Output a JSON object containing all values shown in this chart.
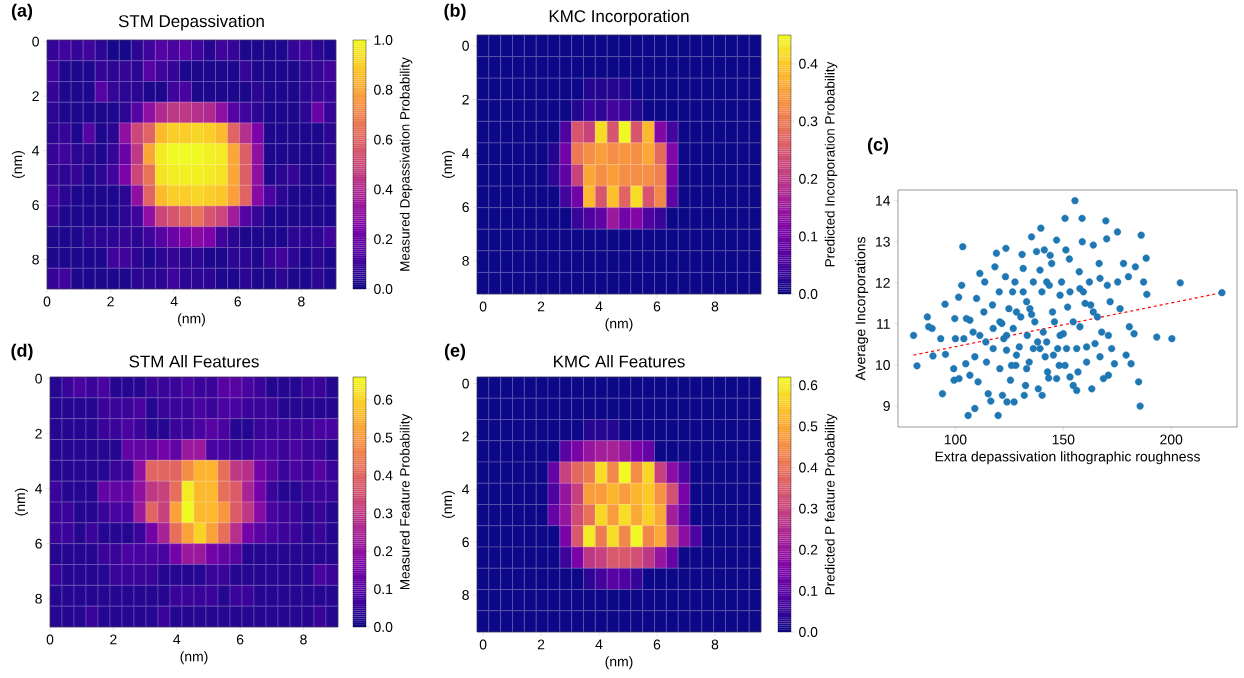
{
  "chart_data": [
    {
      "type": "heatmap",
      "title": "STM Depassivation",
      "xlabel": "(nm)",
      "ylabel": "(nm)",
      "clabel": "Measured Depassivation Probability",
      "annotations": [
        "(a)"
      ],
      "xlim": [
        0,
        9.09
      ],
      "ylim": [
        9.08,
        -0.06
      ],
      "xticks": [
        0,
        2,
        4,
        6,
        8
      ],
      "yticks": [
        0,
        2,
        4,
        6,
        8
      ],
      "clim": [
        0,
        1.0
      ],
      "cticks": [
        {
          "value": 0,
          "label": "0.0"
        },
        {
          "value": 0.2,
          "label": "0.2"
        },
        {
          "value": 0.4,
          "label": "0.4"
        },
        {
          "value": 0.6,
          "label": "0.6"
        },
        {
          "value": 0.8,
          "label": "0.8"
        },
        {
          "value": 1.0,
          "label": "1.0"
        }
      ],
      "cells": [
        [
          0.08,
          0.1,
          0.08,
          0.1,
          0.06,
          0.02,
          0.02,
          0.06,
          0.1,
          0.15,
          0.12,
          0.15,
          0.1,
          0.05,
          0.1,
          0.08,
          0.03,
          0.03,
          0.03,
          0.03,
          0.08,
          0.1,
          0.06,
          0.03
        ],
        [
          0.1,
          0.03,
          0.03,
          0.03,
          0.08,
          0.06,
          0.08,
          0.06,
          0.15,
          0.1,
          0.08,
          0.03,
          0.03,
          0.03,
          0.03,
          0.03,
          0.08,
          0.03,
          0.03,
          0.03,
          0.03,
          0.06,
          0.08,
          0.1
        ],
        [
          0.08,
          0.03,
          0.03,
          0.03,
          0.15,
          0.08,
          0.06,
          0.06,
          0.03,
          0.03,
          0.1,
          0.12,
          0.03,
          0.03,
          0.03,
          0.03,
          0.03,
          0.06,
          0.03,
          0.03,
          0.03,
          0.06,
          0.08,
          0.08
        ],
        [
          0.06,
          0.03,
          0.03,
          0.03,
          0.03,
          0.03,
          0.06,
          0.15,
          0.3,
          0.4,
          0.45,
          0.45,
          0.42,
          0.4,
          0.3,
          0.15,
          0.1,
          0.06,
          0.03,
          0.03,
          0.03,
          0.06,
          0.2,
          0.08
        ],
        [
          0.06,
          0.08,
          0.03,
          0.15,
          0.03,
          0.06,
          0.3,
          0.5,
          0.6,
          0.85,
          0.9,
          0.9,
          0.92,
          0.9,
          0.85,
          0.6,
          0.42,
          0.25,
          0.03,
          0.03,
          0.03,
          0.03,
          0.03,
          0.06
        ],
        [
          0.08,
          0.1,
          0.06,
          0.06,
          0.03,
          0.08,
          0.2,
          0.45,
          0.8,
          0.97,
          1.0,
          1.0,
          1.0,
          0.98,
          0.97,
          0.8,
          0.58,
          0.3,
          0.03,
          0.03,
          0.03,
          0.03,
          0.03,
          0.06
        ],
        [
          0.08,
          0.06,
          0.08,
          0.03,
          0.06,
          0.1,
          0.25,
          0.5,
          0.65,
          0.95,
          0.97,
          0.98,
          0.98,
          0.97,
          0.95,
          0.8,
          0.58,
          0.3,
          0.03,
          0.06,
          0.08,
          0.03,
          0.03,
          0.08
        ],
        [
          0.1,
          0.06,
          0.03,
          0.03,
          0.03,
          0.03,
          0.06,
          0.3,
          0.6,
          0.85,
          0.9,
          0.9,
          0.92,
          0.9,
          0.88,
          0.78,
          0.6,
          0.28,
          0.12,
          0.06,
          0.03,
          0.03,
          0.03,
          0.03
        ],
        [
          0.08,
          0.03,
          0.03,
          0.03,
          0.03,
          0.03,
          0.06,
          0.1,
          0.3,
          0.5,
          0.55,
          0.6,
          0.65,
          0.55,
          0.5,
          0.35,
          0.15,
          0.08,
          0.03,
          0.03,
          0.03,
          0.03,
          0.03,
          0.03
        ],
        [
          0.03,
          0.03,
          0.03,
          0.06,
          0.06,
          0.06,
          0.08,
          0.06,
          0.1,
          0.15,
          0.2,
          0.25,
          0.28,
          0.25,
          0.1,
          0.06,
          0.03,
          0.03,
          0.03,
          0.03,
          0.06,
          0.06,
          0.06,
          0.1
        ],
        [
          0.03,
          0.03,
          0.03,
          0.03,
          0.03,
          0.1,
          0.1,
          0.06,
          0.03,
          0.06,
          0.08,
          0.06,
          0.06,
          0.03,
          0.03,
          0.06,
          0.06,
          0.03,
          0.08,
          0.1,
          0.06,
          0.03,
          0.06,
          0.03
        ],
        [
          0.08,
          0.1,
          0.03,
          0.03,
          0.03,
          0.03,
          0.03,
          0.06,
          0.06,
          0.06,
          0.1,
          0.06,
          0.06,
          0.06,
          0.03,
          0.03,
          0.06,
          0.03,
          0.03,
          0.06,
          0.03,
          0.03,
          0.06,
          0.03
        ]
      ]
    },
    {
      "type": "heatmap",
      "title": "KMC Incorporation",
      "xlabel": "(nm)",
      "ylabel": "(nm)",
      "clabel": "Predicted Incorporation Probability",
      "annotations": [
        "(b)"
      ],
      "xlim": [
        -0.21,
        9.59
      ],
      "ylim": [
        9.23,
        -0.4
      ],
      "xticks": [
        0,
        2,
        4,
        6,
        8
      ],
      "yticks": [
        0,
        2,
        4,
        6,
        8
      ],
      "clim": [
        0,
        0.45
      ],
      "cticks": [
        {
          "value": 0,
          "label": "0.0"
        },
        {
          "value": 0.1,
          "label": "0.1"
        },
        {
          "value": 0.2,
          "label": "0.2"
        },
        {
          "value": 0.3,
          "label": "0.3"
        },
        {
          "value": 0.4,
          "label": "0.4"
        }
      ],
      "cells": [
        [
          0,
          0,
          0,
          0,
          0,
          0,
          0,
          0,
          0,
          0,
          0,
          0,
          0,
          0,
          0,
          0,
          0,
          0,
          0,
          0,
          0,
          0,
          0,
          0
        ],
        [
          0,
          0,
          0,
          0,
          0,
          0,
          0,
          0,
          0,
          0,
          0,
          0,
          0,
          0,
          0,
          0,
          0,
          0,
          0,
          0,
          0,
          0,
          0,
          0
        ],
        [
          0,
          0,
          0,
          0,
          0,
          0,
          0,
          0,
          0,
          0.02,
          0.02,
          0.02,
          0.02,
          0,
          0,
          0,
          0,
          0,
          0,
          0,
          0,
          0,
          0,
          0
        ],
        [
          0,
          0,
          0,
          0,
          0,
          0,
          0,
          0,
          0.02,
          0.04,
          0.03,
          0.05,
          0.04,
          0.02,
          0,
          0,
          0,
          0,
          0,
          0,
          0,
          0,
          0,
          0
        ],
        [
          0,
          0,
          0,
          0,
          0,
          0,
          0,
          0.06,
          0.25,
          0.22,
          0.42,
          0.25,
          0.45,
          0.25,
          0.38,
          0.12,
          0.05,
          0,
          0,
          0,
          0,
          0,
          0,
          0
        ],
        [
          0,
          0,
          0,
          0,
          0,
          0,
          0.02,
          0.1,
          0.3,
          0.33,
          0.35,
          0.33,
          0.34,
          0.33,
          0.36,
          0.28,
          0.12,
          0,
          0,
          0,
          0,
          0,
          0,
          0
        ],
        [
          0,
          0,
          0,
          0,
          0,
          0,
          0.03,
          0.08,
          0.22,
          0.36,
          0.33,
          0.35,
          0.33,
          0.33,
          0.33,
          0.31,
          0.1,
          0,
          0,
          0,
          0,
          0,
          0,
          0
        ],
        [
          0,
          0,
          0,
          0,
          0,
          0,
          0,
          0.05,
          0.1,
          0.38,
          0.25,
          0.39,
          0.27,
          0.42,
          0.25,
          0.32,
          0.08,
          0,
          0,
          0,
          0,
          0,
          0,
          0
        ],
        [
          0,
          0,
          0,
          0,
          0,
          0,
          0,
          0,
          0.04,
          0.06,
          0.08,
          0.15,
          0.1,
          0.12,
          0.06,
          0.04,
          0,
          0,
          0,
          0,
          0,
          0,
          0,
          0
        ],
        [
          0,
          0,
          0,
          0,
          0,
          0,
          0,
          0,
          0,
          0,
          0,
          0,
          0,
          0,
          0,
          0,
          0,
          0,
          0,
          0,
          0,
          0,
          0,
          0
        ],
        [
          0,
          0,
          0,
          0,
          0,
          0,
          0,
          0,
          0,
          0,
          0,
          0,
          0,
          0,
          0,
          0,
          0,
          0,
          0,
          0,
          0,
          0,
          0,
          0
        ],
        [
          0,
          0,
          0,
          0,
          0,
          0,
          0,
          0,
          0,
          0,
          0,
          0,
          0,
          0,
          0,
          0,
          0,
          0,
          0,
          0,
          0,
          0,
          0,
          0
        ]
      ]
    },
    {
      "type": "scatter",
      "xlabel": "Extra depassivation lithographic roughness",
      "ylabel": "Average Incorporations",
      "annotations": [
        "(c)"
      ],
      "xlim": [
        73.4,
        230.5
      ],
      "ylim": [
        8.49,
        14.26
      ],
      "xticks": [
        100,
        150,
        200
      ],
      "yticks": [
        9,
        10,
        11,
        12,
        13,
        14
      ],
      "marker": "circle",
      "series": [
        {
          "type": "scatter",
          "color": "#1f77b4",
          "x": [
            80.6,
            82.2,
            87.0,
            87.6,
            89.2,
            89.6,
            94.0,
            93.2,
            95.2,
            95.4,
            99.7,
            100.0,
            99.2,
            99.4,
            101.5,
            102.9,
            101.7,
            103.4,
            103.9,
            105.1,
            104.8,
            105.9,
            106.7,
            106.7,
            109.0,
            108.2,
            109.0,
            109.8,
            111.3,
            111.3,
            110.5,
            113.6,
            113.2,
            114.1,
            115.2,
            116.4,
            117.2,
            117.5,
            118.3,
            119.0,
            119.8,
            120.3,
            120.6,
            121.5,
            121.8,
            122.4,
            123.4,
            123.2,
            123.7,
            123.9,
            124.8,
            125.5,
            126.5,
            126.8,
            127.2,
            128.0,
            127.6,
            129.6,
            130.3,
            130.9,
            131.4,
            131.9,
            132.5,
            133.0,
            133.3,
            134.2,
            135.3,
            135.3,
            136.1,
            137.6,
            138.1,
            138.4,
            139.6,
            139.2,
            140.1,
            140.7,
            141.2,
            141.6,
            142.7,
            143.2,
            143.5,
            143.9,
            144.6,
            145.0,
            145.9,
            146.9,
            147.4,
            148.1,
            149.2,
            150.0,
            150.8,
            151.2,
            152.0,
            152.8,
            153.1,
            154.6,
            155.4,
            156.2,
            156.8,
            157.4,
            157.7,
            158.7,
            158.8,
            159.3,
            160.1,
            160.8,
            162.1,
            162.7,
            163.2,
            163.9,
            164.7,
            165.8,
            166.6,
            167.0,
            167.8,
            168.6,
            169.7,
            170.1,
            170.4,
            170.9,
            171.7,
            172.4,
            173.7,
            175.1,
            175.2,
            176.3,
            177.9,
            179.1,
            180.2,
            180.6,
            181.4,
            182.8,
            183.4,
            184.9,
            185.6,
            186.1,
            187.2,
            188.4,
            188.7,
            193.3,
            200.3,
            204.2,
            223.5,
            128.3,
            131.4,
            134.5,
            136.8,
            139.2,
            142.3,
            145.4,
            148.5,
            151.5,
            154.6,
            156.2,
            150.8,
            128.3,
            123.7,
            120.6,
            117.5,
            114.4,
            126.0,
            133.0,
            136.1,
            142.3,
            148.5,
            153.1,
            160.8,
            163.9,
            167.0,
            170.9,
            157.7,
            146.9,
            140.2
          ],
          "values": [
            10.72,
            9.98,
            11.17,
            10.93,
            10.89,
            10.22,
            9.3,
            10.64,
            11.48,
            10.26,
            11.13,
            10.64,
            9.91,
            9.63,
            11.65,
            11.94,
            9.67,
            12.88,
            10.64,
            11.13,
            10.03,
            8.77,
            11.09,
            9.75,
            8.94,
            10.8,
            10.2,
            11.62,
            12.23,
            10.72,
            9.59,
            12.02,
            11.29,
            10.56,
            9.3,
            9.12,
            11.46,
            10.4,
            12.39,
            12.72,
            8.77,
            11.78,
            9.91,
            11.01,
            9.26,
            10.64,
            12.84,
            12.15,
            10.36,
            9.1,
            11.37,
            9.63,
            11.78,
            10.89,
            9.1,
            9.99,
            12.02,
            10.44,
            11.17,
            12.69,
            12.35,
            9.26,
            9.5,
            11.54,
            10.72,
            10.07,
            13.12,
            11.23,
            12.02,
            12.76,
            10.56,
            9.42,
            13.33,
            12.31,
            11.78,
            10.8,
            12.8,
            10.2,
            9.83,
            9.68,
            11.94,
            12.67,
            12.47,
            11.29,
            11.05,
            13.04,
            10.4,
            9.99,
            12.02,
            10.76,
            13.57,
            12.8,
            11.41,
            12.58,
            9.71,
            9.5,
            14.0,
            9.38,
            9.83,
            12.27,
            10.93,
            13.57,
            13.0,
            11.78,
            11.5,
            10.44,
            12.02,
            11.46,
            9.42,
            12.92,
            10.52,
            11.17,
            12.47,
            12.11,
            10.8,
            9.67,
            13.51,
            13.07,
            11.94,
            9.75,
            11.54,
            10.4,
            10.03,
            13.24,
            12.02,
            11.37,
            12.47,
            10.24,
            12.15,
            10.93,
            10.03,
            10.76,
            12.39,
            9.59,
            9.0,
            13.16,
            12.02,
            12.6,
            11.72,
            10.68,
            10.64,
            12.0,
            11.76,
            11.29,
            11.78,
            11.37,
            11.05,
            10.4,
            10.56,
            10.24,
            10.72,
            10.4,
            11.05,
            10.4,
            9.99,
            10.24,
            10.72,
            11.05,
            10.89,
            10.07,
            9.99,
            9.91,
            10.4,
            12.02,
            11.7,
            11.78,
            10.07,
            11.29,
            10.2,
            10.72,
            11.86,
            9.67,
            9.26
          ]
        },
        {
          "type": "line",
          "color": "#ff0000",
          "line_style": "dashed",
          "marker": "none",
          "x": [
            80.6,
            223.5
          ],
          "values": [
            10.24,
            11.76
          ]
        }
      ]
    },
    {
      "type": "heatmap",
      "title": "STM All Features",
      "xlabel": "(nm)",
      "ylabel": "(nm)",
      "clabel": "Measured Feature Probability",
      "annotations": [
        "(d)"
      ],
      "xlim": [
        0,
        9.09
      ],
      "ylim": [
        9.03,
        -0.06
      ],
      "xticks": [
        0,
        2,
        4,
        6,
        8
      ],
      "yticks": [
        0,
        2,
        4,
        6,
        8
      ],
      "clim": [
        0,
        0.66
      ],
      "cticks": [
        {
          "value": 0,
          "label": "0.0"
        },
        {
          "value": 0.1,
          "label": "0.1"
        },
        {
          "value": 0.2,
          "label": "0.2"
        },
        {
          "value": 0.3,
          "label": "0.3"
        },
        {
          "value": 0.4,
          "label": "0.4"
        },
        {
          "value": 0.5,
          "label": "0.5"
        },
        {
          "value": 0.6,
          "label": "0.6"
        }
      ],
      "cells": [
        [
          0.03,
          0.06,
          0.08,
          0.06,
          0.08,
          0.03,
          0.03,
          0.03,
          0.06,
          0.06,
          0.06,
          0.08,
          0.06,
          0.06,
          0.1,
          0.1,
          0.08,
          0.06,
          0.03,
          0.03,
          0.03,
          0.06,
          0.06,
          0.03
        ],
        [
          0.03,
          0.03,
          0.03,
          0.03,
          0.06,
          0.06,
          0.06,
          0.08,
          0.03,
          0.06,
          0.06,
          0.06,
          0.08,
          0.06,
          0.08,
          0.08,
          0.06,
          0.06,
          0.06,
          0.03,
          0.03,
          0.03,
          0.03,
          0.03
        ],
        [
          0.03,
          0.03,
          0.03,
          0.03,
          0.06,
          0.06,
          0.08,
          0.06,
          0.03,
          0.03,
          0.06,
          0.06,
          0.08,
          0.1,
          0.08,
          0.03,
          0.03,
          0.06,
          0.06,
          0.06,
          0.06,
          0.06,
          0.08,
          0.08
        ],
        [
          0.03,
          0.03,
          0.03,
          0.03,
          0.03,
          0.03,
          0.12,
          0.12,
          0.12,
          0.15,
          0.12,
          0.22,
          0.22,
          0.08,
          0.08,
          0.06,
          0.06,
          0.08,
          0.08,
          0.06,
          0.08,
          0.06,
          0.06,
          0.03
        ],
        [
          0.03,
          0.03,
          0.03,
          0.03,
          0.03,
          0.06,
          0.06,
          0.2,
          0.4,
          0.4,
          0.4,
          0.48,
          0.55,
          0.55,
          0.42,
          0.3,
          0.28,
          0.15,
          0.1,
          0.06,
          0.08,
          0.06,
          0.1,
          0.06
        ],
        [
          0.06,
          0.03,
          0.03,
          0.03,
          0.12,
          0.12,
          0.12,
          0.2,
          0.3,
          0.32,
          0.42,
          0.64,
          0.56,
          0.56,
          0.42,
          0.38,
          0.25,
          0.15,
          0.06,
          0.03,
          0.03,
          0.06,
          0.06,
          0.06
        ],
        [
          0.06,
          0.06,
          0.03,
          0.03,
          0.06,
          0.08,
          0.08,
          0.22,
          0.4,
          0.32,
          0.52,
          0.66,
          0.56,
          0.56,
          0.5,
          0.38,
          0.3,
          0.18,
          0.08,
          0.06,
          0.06,
          0.03,
          0.06,
          0.03
        ],
        [
          0.06,
          0.06,
          0.03,
          0.06,
          0.03,
          0.03,
          0.03,
          0.06,
          0.15,
          0.25,
          0.42,
          0.52,
          0.6,
          0.52,
          0.42,
          0.28,
          0.15,
          0.1,
          0.08,
          0.06,
          0.06,
          0.03,
          0.06,
          0.03
        ],
        [
          0.03,
          0.03,
          0.03,
          0.03,
          0.06,
          0.06,
          0.08,
          0.08,
          0.08,
          0.08,
          0.15,
          0.22,
          0.22,
          0.15,
          0.12,
          0.1,
          0.03,
          0.03,
          0.03,
          0.03,
          0.03,
          0.03,
          0.03,
          0.03
        ],
        [
          0.06,
          0.03,
          0.03,
          0.03,
          0.03,
          0.06,
          0.06,
          0.06,
          0.06,
          0.03,
          0.03,
          0.03,
          0.03,
          0.06,
          0.06,
          0.03,
          0.03,
          0.03,
          0.03,
          0.03,
          0.03,
          0.03,
          0.08,
          0.06
        ],
        [
          0.03,
          0.03,
          0.03,
          0.03,
          0.03,
          0.03,
          0.03,
          0.03,
          0.03,
          0.03,
          0.06,
          0.06,
          0.06,
          0.06,
          0.03,
          0.06,
          0.06,
          0.03,
          0.03,
          0.03,
          0.03,
          0.03,
          0.03,
          0.03
        ],
        [
          0.03,
          0.03,
          0.03,
          0.06,
          0.03,
          0.03,
          0.03,
          0.03,
          0.03,
          0.06,
          0.03,
          0.03,
          0.03,
          0.03,
          0.03,
          0.03,
          0.03,
          0.03,
          0.03,
          0.03,
          0.03,
          0.03,
          0.06,
          0.03
        ]
      ]
    },
    {
      "type": "heatmap",
      "title": "KMC All Features",
      "xlabel": "(nm)",
      "ylabel": "(nm)",
      "clabel": "Predicted P feature Probability",
      "annotations": [
        "(e)"
      ],
      "xlim": [
        -0.21,
        9.59
      ],
      "ylim": [
        9.4,
        -0.25
      ],
      "xticks": [
        0,
        2,
        4,
        6,
        8
      ],
      "yticks": [
        0,
        2,
        4,
        6,
        8
      ],
      "clim": [
        0,
        0.62
      ],
      "cticks": [
        {
          "value": 0,
          "label": "0.0"
        },
        {
          "value": 0.1,
          "label": "0.1"
        },
        {
          "value": 0.2,
          "label": "0.2"
        },
        {
          "value": 0.3,
          "label": "0.3"
        },
        {
          "value": 0.4,
          "label": "0.4"
        },
        {
          "value": 0.5,
          "label": "0.5"
        },
        {
          "value": 0.6,
          "label": "0.6"
        }
      ],
      "cells": [
        [
          0,
          0,
          0,
          0,
          0,
          0,
          0,
          0,
          0,
          0,
          0,
          0,
          0,
          0,
          0,
          0,
          0,
          0,
          0,
          0,
          0,
          0,
          0,
          0
        ],
        [
          0,
          0,
          0,
          0,
          0,
          0,
          0,
          0,
          0,
          0,
          0,
          0,
          0,
          0,
          0,
          0,
          0,
          0,
          0,
          0,
          0,
          0,
          0,
          0
        ],
        [
          0,
          0,
          0,
          0,
          0,
          0,
          0,
          0,
          0,
          0.03,
          0.03,
          0.03,
          0,
          0,
          0,
          0,
          0,
          0,
          0,
          0,
          0,
          0,
          0,
          0
        ],
        [
          0,
          0,
          0,
          0,
          0,
          0,
          0,
          0.1,
          0.15,
          0.2,
          0.22,
          0.23,
          0.2,
          0.15,
          0.12,
          0,
          0,
          0,
          0,
          0,
          0,
          0,
          0,
          0
        ],
        [
          0,
          0,
          0,
          0,
          0,
          0,
          0.12,
          0.3,
          0.38,
          0.42,
          0.58,
          0.44,
          0.62,
          0.45,
          0.57,
          0.3,
          0.18,
          0.08,
          0,
          0,
          0,
          0,
          0,
          0
        ],
        [
          0,
          0,
          0,
          0,
          0,
          0,
          0.08,
          0.2,
          0.3,
          0.48,
          0.48,
          0.52,
          0.48,
          0.52,
          0.55,
          0.46,
          0.33,
          0.15,
          0,
          0,
          0,
          0,
          0,
          0
        ],
        [
          0,
          0,
          0,
          0,
          0,
          0,
          0.12,
          0.2,
          0.32,
          0.4,
          0.57,
          0.48,
          0.58,
          0.5,
          0.56,
          0.5,
          0.22,
          0.12,
          0,
          0,
          0,
          0,
          0,
          0
        ],
        [
          0,
          0,
          0,
          0,
          0,
          0,
          0,
          0.15,
          0.35,
          0.6,
          0.42,
          0.58,
          0.44,
          0.62,
          0.44,
          0.5,
          0.3,
          0.18,
          0.08,
          0,
          0,
          0,
          0,
          0
        ],
        [
          0,
          0,
          0,
          0,
          0,
          0,
          0,
          0.06,
          0.15,
          0.28,
          0.3,
          0.35,
          0.35,
          0.33,
          0.28,
          0.2,
          0.12,
          0,
          0,
          0,
          0,
          0,
          0,
          0
        ],
        [
          0,
          0,
          0,
          0,
          0,
          0,
          0,
          0,
          0,
          0.04,
          0.07,
          0.1,
          0.08,
          0.05,
          0,
          0,
          0,
          0,
          0,
          0,
          0,
          0,
          0,
          0
        ],
        [
          0,
          0,
          0,
          0,
          0,
          0,
          0,
          0,
          0,
          0,
          0,
          0,
          0,
          0,
          0,
          0,
          0,
          0,
          0,
          0,
          0,
          0,
          0,
          0
        ],
        [
          0,
          0,
          0,
          0,
          0,
          0,
          0,
          0,
          0,
          0,
          0,
          0,
          0,
          0,
          0,
          0,
          0,
          0,
          0,
          0,
          0,
          0,
          0,
          0
        ]
      ]
    }
  ]
}
